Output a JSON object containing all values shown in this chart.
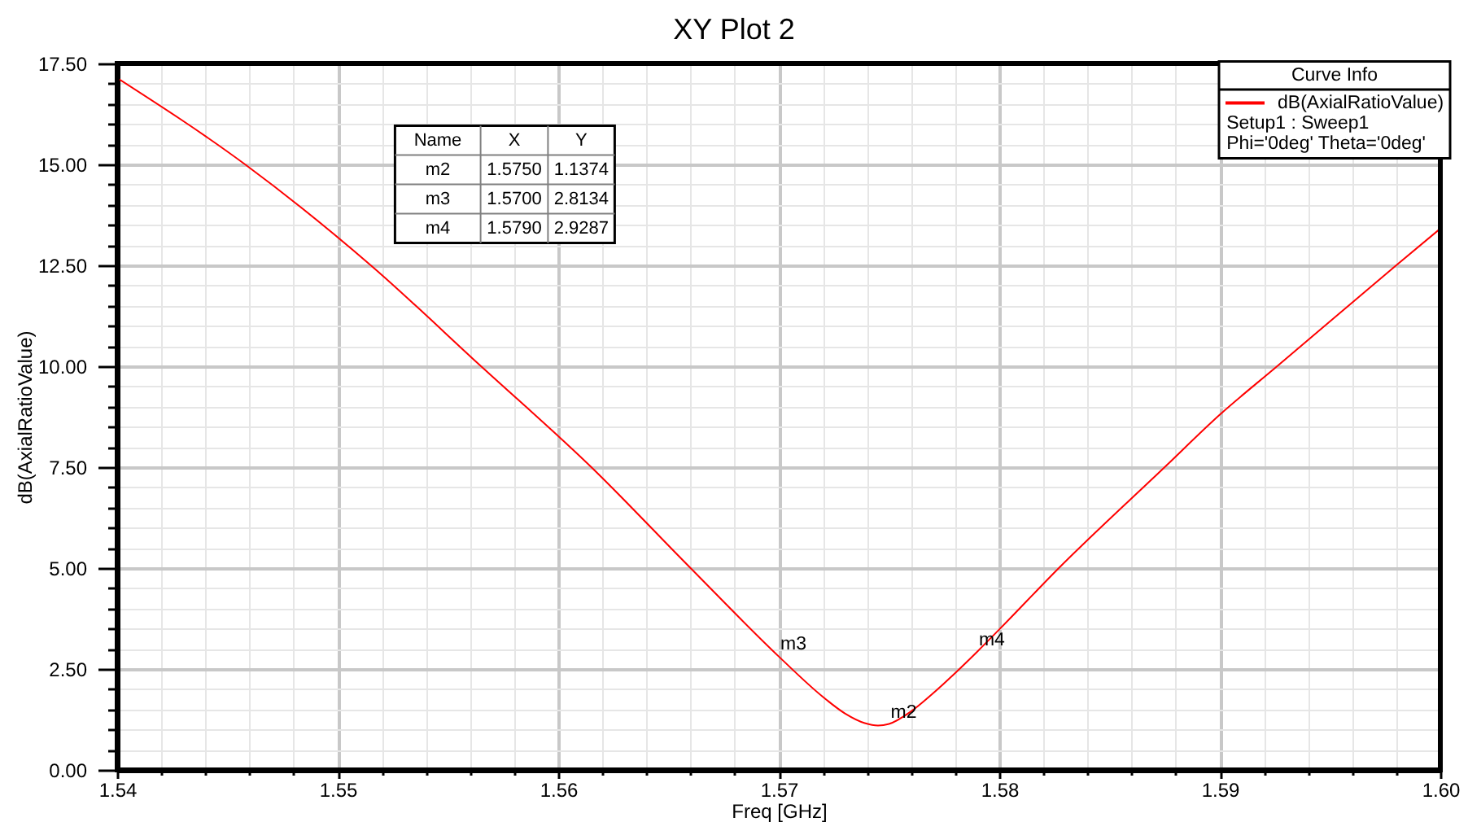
{
  "chart_data": {
    "type": "line",
    "title": "XY Plot 2",
    "xlabel": "Freq [GHz]",
    "ylabel": "dB(AxialRatioValue)",
    "legend_title": "Curve Info",
    "x": [
      1.54,
      1.5458,
      1.5515,
      1.5565,
      1.5615,
      1.566,
      1.57,
      1.572,
      1.573,
      1.5739,
      1.5745,
      1.575,
      1.576,
      1.577,
      1.578,
      1.579,
      1.58,
      1.5827,
      1.5875,
      1.59,
      1.5926,
      1.598,
      1.6
    ],
    "series": [
      {
        "name": "dB(AxialRatioValue)",
        "color": "#ff0000",
        "values": [
          17.14,
          15.0,
          12.5,
          10.0,
          7.5,
          5.0,
          2.81,
          1.81,
          1.4,
          1.16,
          1.1,
          1.14,
          1.45,
          1.9,
          2.4,
          2.93,
          3.48,
          5.0,
          7.5,
          8.8,
          10.0,
          12.5,
          13.41
        ]
      }
    ],
    "xlim": [
      1.54,
      1.6
    ],
    "ylim": [
      0,
      17.5
    ],
    "xticks": [
      1.54,
      {
        "value": 1.542,
        "label": null
      },
      {
        "value": 1.544,
        "label": null
      },
      {
        "value": 1.546,
        "label": null
      },
      {
        "value": 1.548,
        "label": null
      },
      1.55,
      {
        "value": 1.552,
        "label": null
      },
      {
        "value": 1.554,
        "label": null
      },
      {
        "value": 1.556,
        "label": null
      },
      {
        "value": 1.558,
        "label": null
      },
      1.56,
      {
        "value": 1.562,
        "label": null
      },
      {
        "value": 1.564,
        "label": null
      },
      {
        "value": 1.566,
        "label": null
      },
      {
        "value": 1.568,
        "label": null
      },
      1.57,
      {
        "value": 1.572,
        "label": null
      },
      {
        "value": 1.574,
        "label": null
      },
      {
        "value": 1.576,
        "label": null
      },
      {
        "value": 1.578,
        "label": null
      },
      1.58,
      {
        "value": 1.582,
        "label": null
      },
      {
        "value": 1.584,
        "label": null
      },
      {
        "value": 1.586,
        "label": null
      },
      {
        "value": 1.588,
        "label": null
      },
      1.59,
      {
        "value": 1.592,
        "label": null
      },
      {
        "value": 1.594,
        "label": null
      },
      {
        "value": 1.596,
        "label": null
      },
      {
        "value": 1.598,
        "label": null
      },
      {
        "value": 1.6,
        "label": "1.60"
      }
    ],
    "yticks": [
      {
        "value": 0,
        "label": "0.00"
      },
      {
        "value": 0.5,
        "label": null
      },
      {
        "value": 1,
        "label": null
      },
      {
        "value": 1.5,
        "label": null
      },
      {
        "value": 2,
        "label": null
      },
      {
        "value": 2.5,
        "label": "2.50"
      },
      {
        "value": 3,
        "label": null
      },
      {
        "value": 3.5,
        "label": null
      },
      {
        "value": 4,
        "label": null
      },
      {
        "value": 4.5,
        "label": null
      },
      {
        "value": 5,
        "label": "5.00"
      },
      {
        "value": 5.5,
        "label": null
      },
      {
        "value": 6,
        "label": null
      },
      {
        "value": 6.5,
        "label": null
      },
      {
        "value": 7,
        "label": null
      },
      {
        "value": 7.5,
        "label": "7.50"
      },
      {
        "value": 8,
        "label": null
      },
      {
        "value": 8.5,
        "label": null
      },
      {
        "value": 9,
        "label": null
      },
      {
        "value": 9.5,
        "label": null
      },
      {
        "value": 10,
        "label": "10.00"
      },
      {
        "value": 10.5,
        "label": null
      },
      {
        "value": 11,
        "label": null
      },
      {
        "value": 11.5,
        "label": null
      },
      {
        "value": 12,
        "label": null
      },
      {
        "value": 12.5,
        "label": "12.50"
      },
      {
        "value": 13,
        "label": null
      },
      {
        "value": 13.5,
        "label": null
      },
      {
        "value": 14,
        "label": null
      },
      {
        "value": 14.5,
        "label": null
      },
      {
        "value": 15,
        "label": "15.00"
      },
      {
        "value": 15.5,
        "label": null
      },
      {
        "value": 16,
        "label": null
      },
      {
        "value": 16.5,
        "label": null
      },
      {
        "value": 17,
        "label": null
      },
      {
        "value": 17.5,
        "label": "17.50"
      }
    ],
    "grid": true,
    "legend": "top right",
    "line_style": "solid",
    "annotations": [
      {
        "text": "m2",
        "x": 1.575,
        "y": 1.1374
      },
      {
        "text": "m3",
        "x": 1.57,
        "y": 2.8134
      },
      {
        "text": "m4",
        "x": 1.579,
        "y": 2.9287
      },
      "Name",
      "X",
      "Y",
      "m2",
      "1.5750",
      "1.1374",
      "m3",
      "1.5700",
      "2.8134",
      "m4",
      "1.5790",
      "2.9287",
      "Setup1 : Sweep1",
      "Phi='0deg' Theta='0deg'"
    ]
  }
}
